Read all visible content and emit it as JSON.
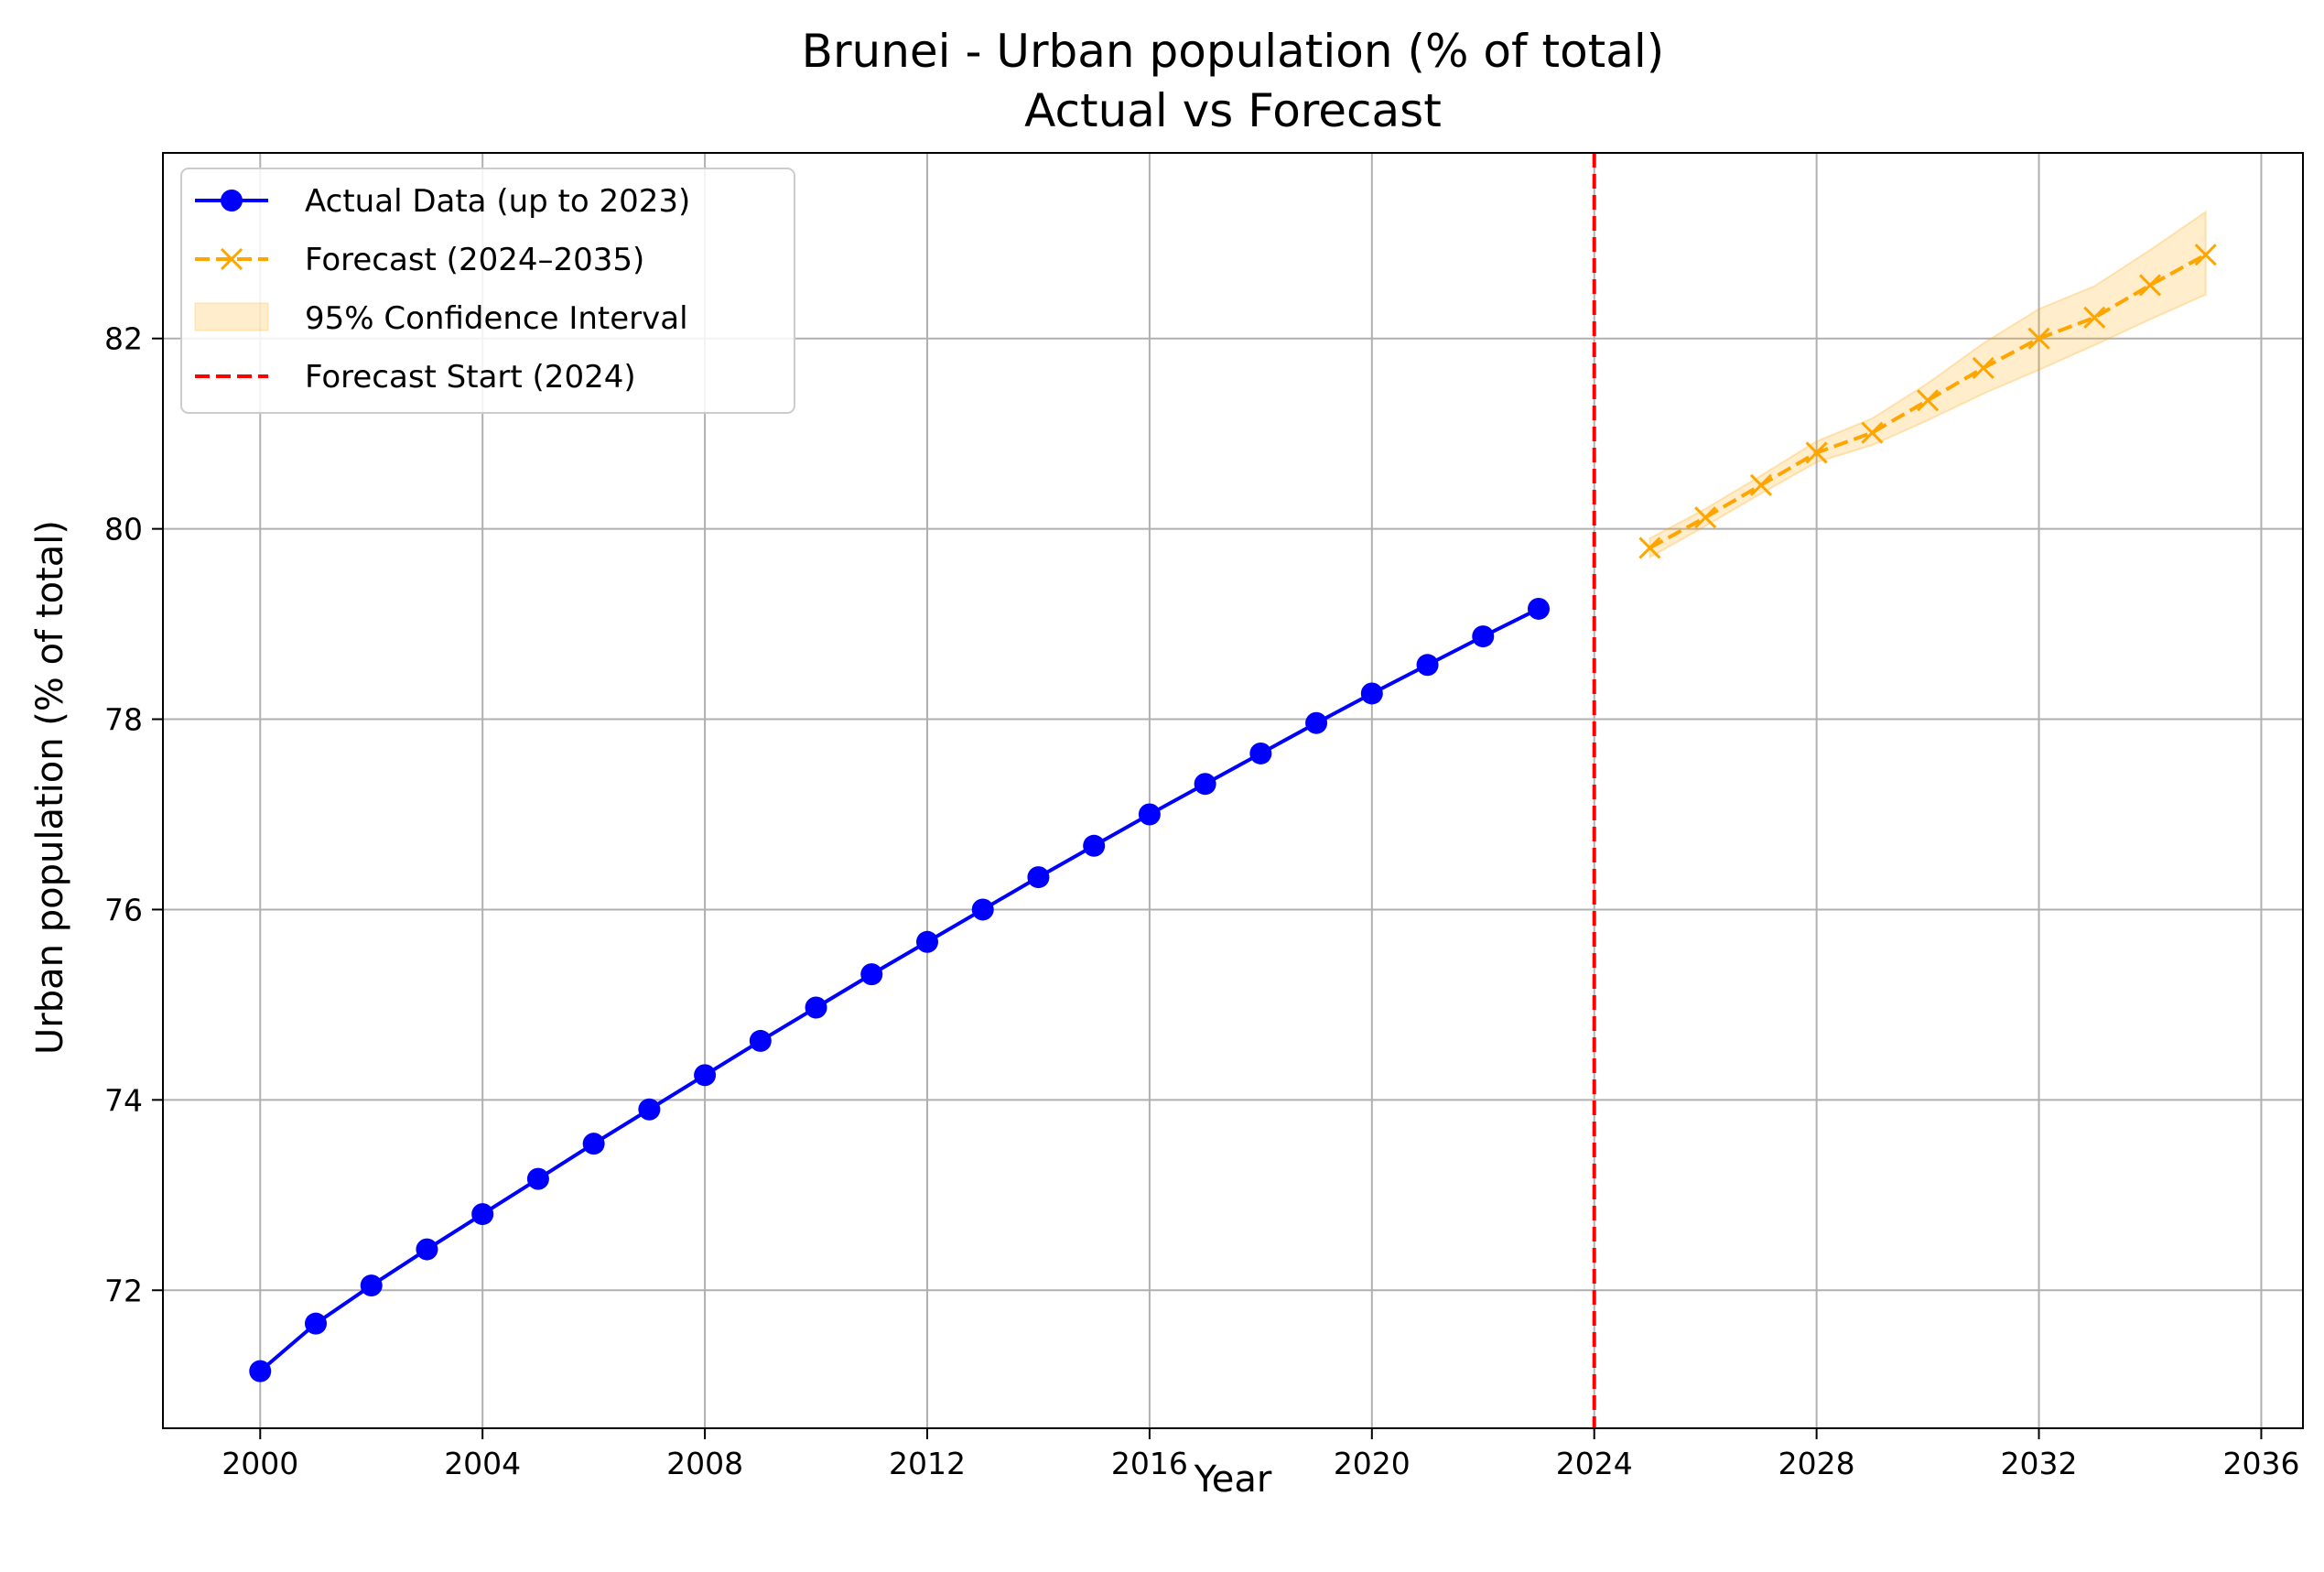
{
  "chart_data": {
    "type": "line",
    "title": "Brunei - Urban population (% of total)",
    "subtitle": "Actual vs Forecast",
    "xlabel": "Year",
    "ylabel": "Urban population (% of total)",
    "xlim": [
      1998.25,
      2036.75
    ],
    "ylim": [
      70.55,
      83.95
    ],
    "xticks": [
      2000,
      2004,
      2008,
      2012,
      2016,
      2020,
      2024,
      2028,
      2032,
      2036
    ],
    "yticks": [
      72,
      74,
      76,
      78,
      80,
      82
    ],
    "grid": true,
    "legend_position": "top-left",
    "vline": {
      "x": 2024,
      "label": "Forecast Start (2024)",
      "color": "#ff0000"
    },
    "series": [
      {
        "name": "Actual Data (up to 2023)",
        "color": "#0000ff",
        "style": "solid",
        "marker": "circle",
        "x": [
          2000,
          2001,
          2002,
          2003,
          2004,
          2005,
          2006,
          2007,
          2008,
          2009,
          2010,
          2011,
          2012,
          2013,
          2014,
          2015,
          2016,
          2017,
          2018,
          2019,
          2020,
          2021,
          2022,
          2023
        ],
        "y": [
          71.15,
          71.65,
          72.05,
          72.43,
          72.8,
          73.17,
          73.54,
          73.9,
          74.26,
          74.62,
          74.97,
          75.32,
          75.66,
          76.0,
          76.34,
          76.67,
          77.0,
          77.32,
          77.64,
          77.96,
          78.27,
          78.57,
          78.87,
          79.16
        ]
      },
      {
        "name": "Forecast (2024–2035)",
        "color": "#ffa500",
        "style": "dashed",
        "marker": "x",
        "x": [
          2025,
          2026,
          2027,
          2028,
          2029,
          2030,
          2031,
          2032,
          2033,
          2034,
          2035
        ],
        "y": [
          79.8,
          80.12,
          80.46,
          80.8,
          81.01,
          81.35,
          81.69,
          82.0,
          82.22,
          82.56,
          82.88
        ]
      }
    ],
    "confidence_band": {
      "name": "95% Confidence Interval",
      "color": "#ffa500",
      "x": [
        2025,
        2026,
        2027,
        2028,
        2029,
        2030,
        2031,
        2032,
        2033,
        2034,
        2035
      ],
      "lower": [
        79.7,
        80.03,
        80.37,
        80.7,
        80.88,
        81.14,
        81.42,
        81.67,
        81.93,
        82.2,
        82.46
      ],
      "upper": [
        79.9,
        80.21,
        80.56,
        80.92,
        81.16,
        81.53,
        81.95,
        82.31,
        82.55,
        82.93,
        83.33
      ]
    }
  }
}
